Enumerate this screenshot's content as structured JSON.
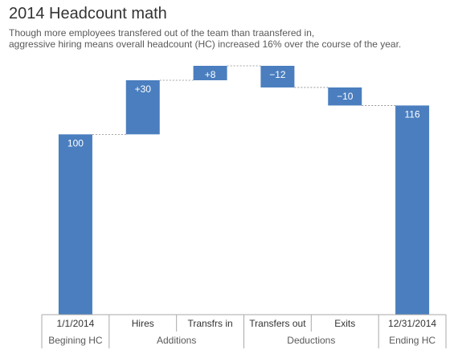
{
  "title": "2014 Headcount math",
  "subtitle_lines": [
    "Though more employees transfered out of the team than traansfered in,",
    "aggressive hiring means overall headcount (HC) increased 16% over the course of the year."
  ],
  "chart_data": {
    "type": "waterfall",
    "title": "2014 Headcount math",
    "subtitle": "Though more employees transfered out of the team than traansfered in, aggressive hiring means overall headcount (HC) increased 16% over the course of the year.",
    "categories": [
      "1/1/2014",
      "Hires",
      "Transfrs in",
      "Transfers out",
      "Exits",
      "12/31/2014"
    ],
    "values": [
      100,
      30,
      8,
      -12,
      -10,
      116
    ],
    "kinds": [
      "total",
      "delta",
      "delta",
      "delta",
      "delta",
      "total"
    ],
    "value_labels": [
      "100",
      "+30",
      "+8",
      "−12",
      "−10",
      "116"
    ],
    "groups": [
      {
        "label": "Begining HC",
        "categories": [
          "1/1/2014"
        ]
      },
      {
        "label": "Additions",
        "categories": [
          "Hires",
          "Transfrs in"
        ]
      },
      {
        "label": "Deductions",
        "categories": [
          "Transfers out",
          "Exits"
        ]
      },
      {
        "label": "Ending HC",
        "categories": [
          "12/31/2014"
        ]
      }
    ],
    "ylim": [
      0,
      138
    ],
    "grid": false,
    "connector_lines": true,
    "bar_color": "#4a7ebf",
    "label_color": "#ffffff",
    "axis_color": "#aaaaaa"
  }
}
